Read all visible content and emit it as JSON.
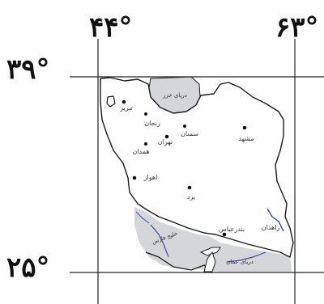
{
  "coordinates": {
    "lon_left": "۴۴°",
    "lon_right": "۶۳°",
    "lat_top": "۳۹°",
    "lat_bottom": "۲۵°"
  },
  "water_bodies": {
    "caspian": "دریای خزر",
    "gulf": "خلیج فارس",
    "oman_sea": "دریای عمان"
  },
  "cities": {
    "tabriz": "تبریز",
    "zanjan": "زنجان",
    "tehran": "تهران",
    "hamedan": "همدان",
    "semnan": "سمنان",
    "mashhad": "مشهد",
    "ahvaz": "اهواز",
    "yazd": "یزد",
    "bandar_abbas": "بندرعباس",
    "zahedan": "زاهدان"
  },
  "colors": {
    "water": "#d4d6da",
    "land": "#ffffff",
    "border": "#1a1a1a",
    "river": "#3a4f9c",
    "grid": "#222222"
  }
}
